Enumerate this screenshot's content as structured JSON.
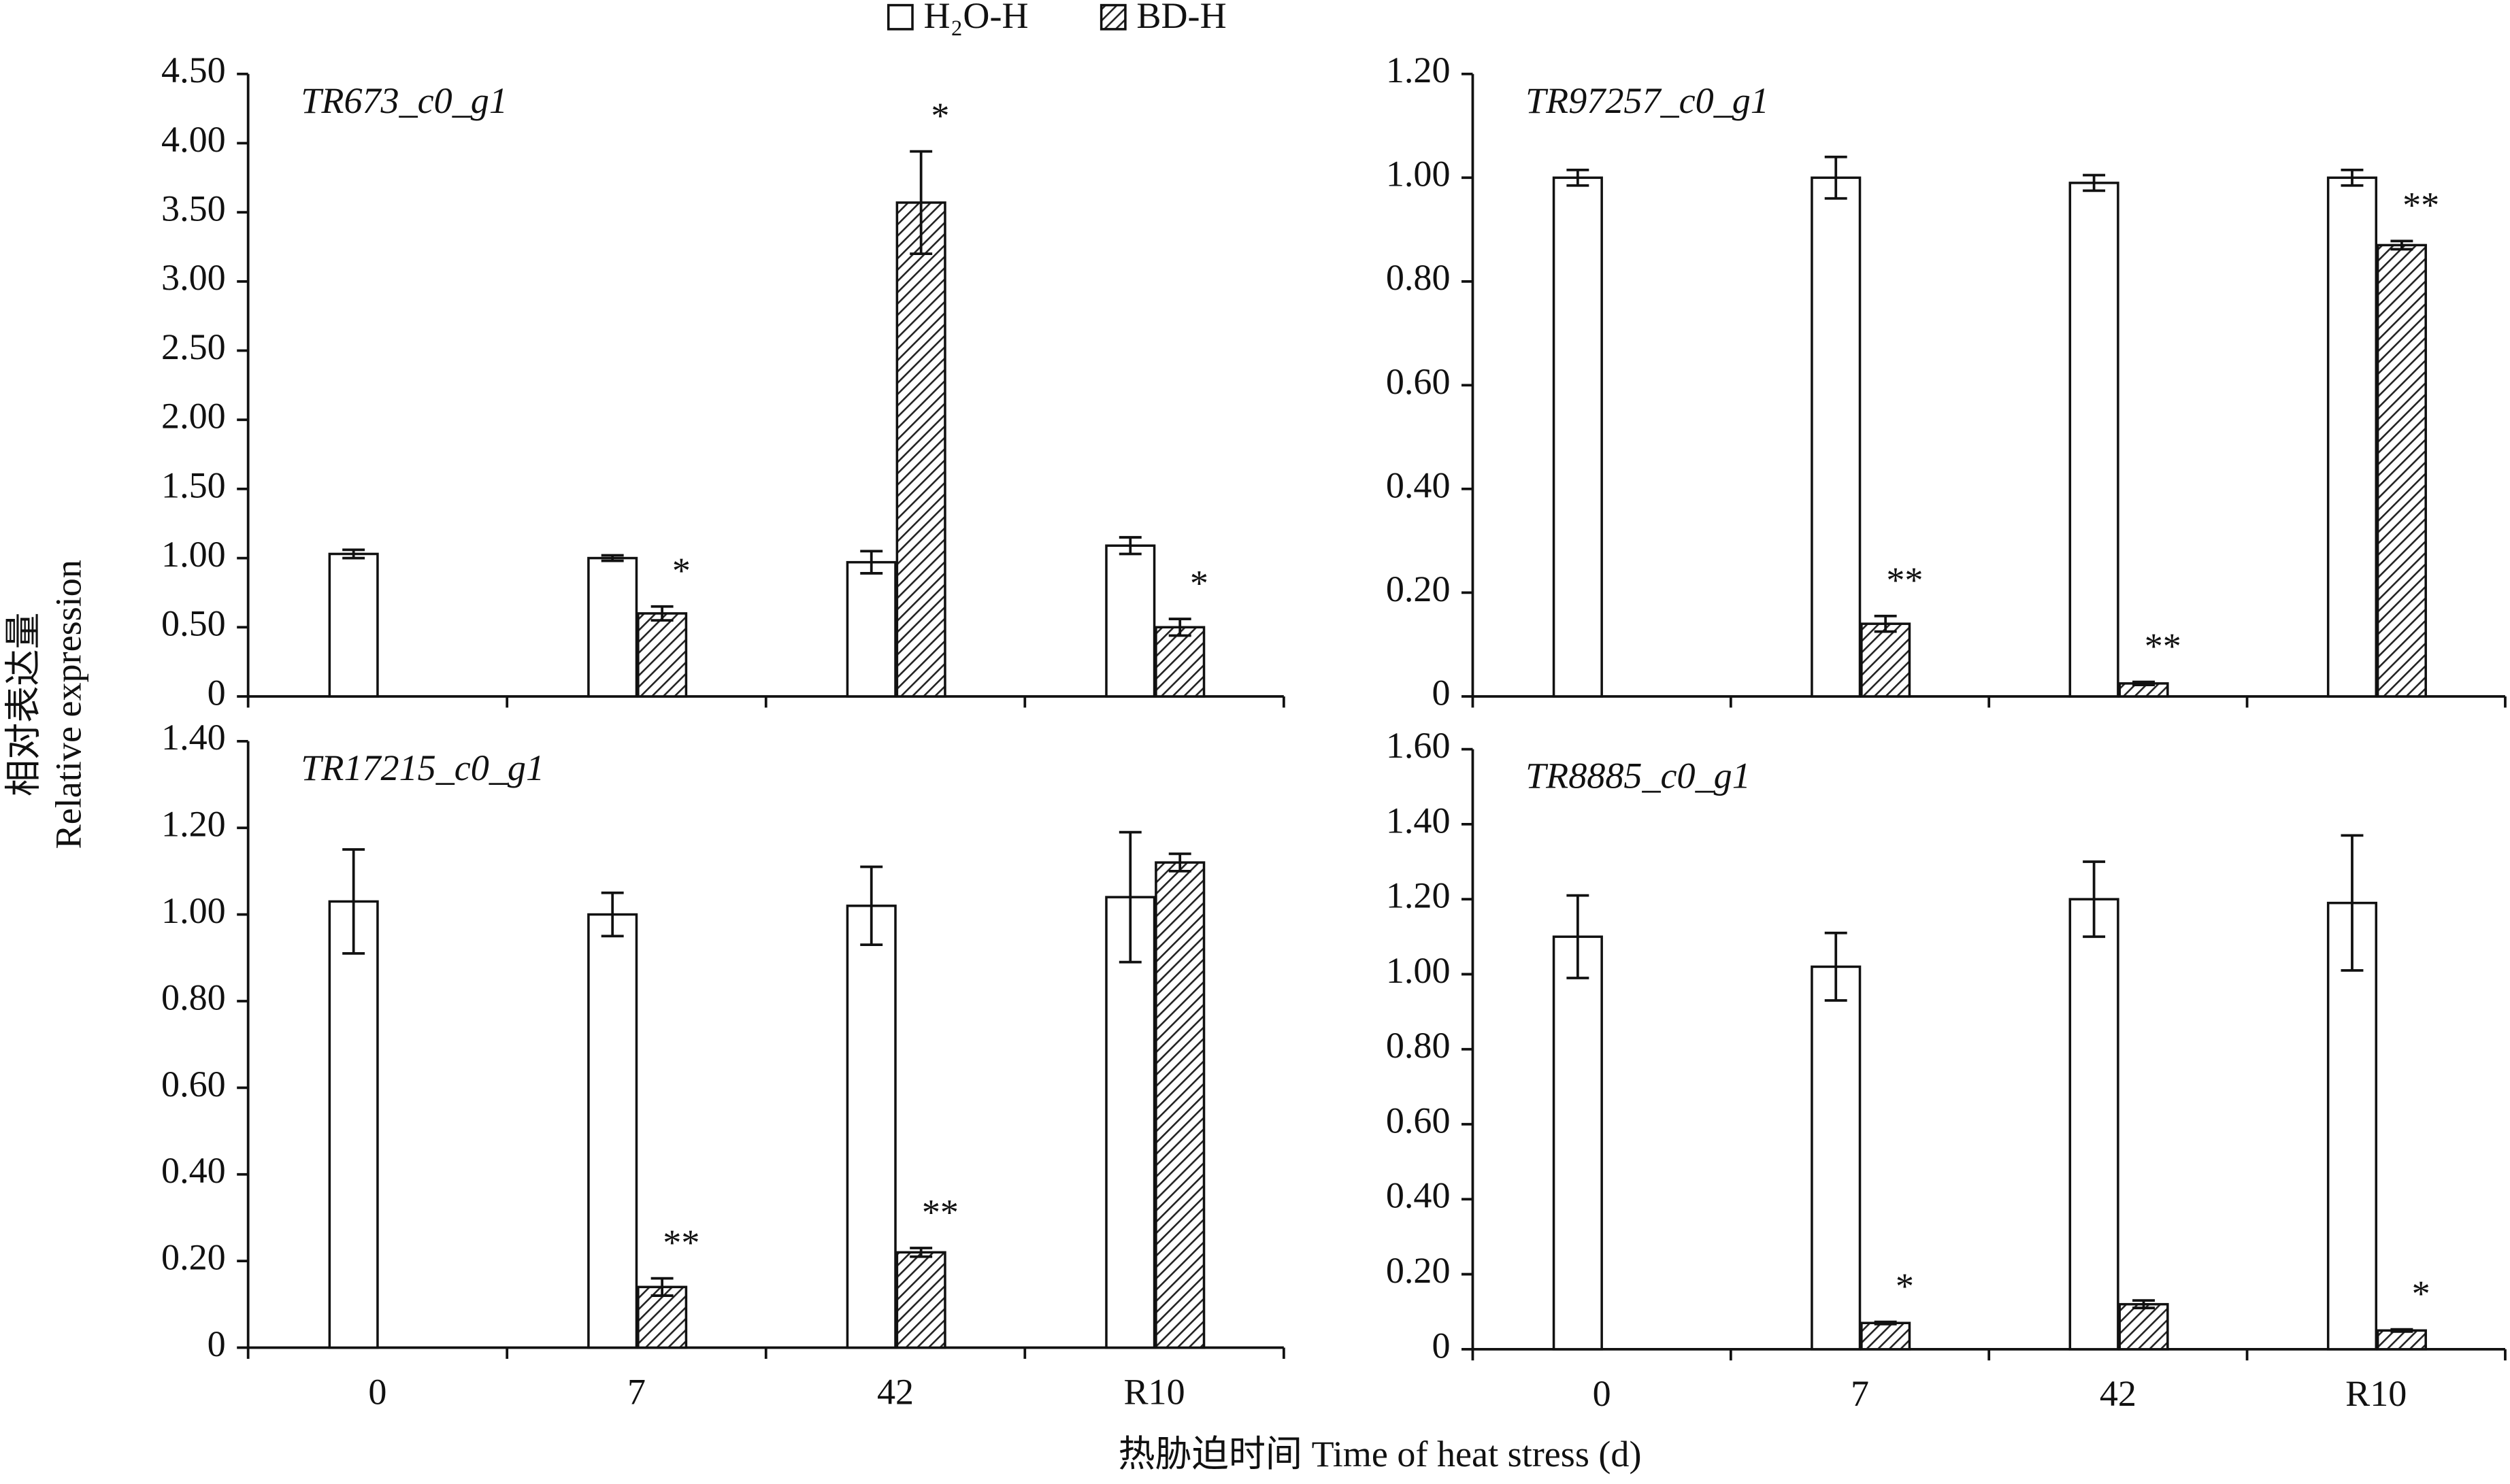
{
  "legend": [
    {
      "name": "H₂O-H",
      "fill": "open"
    },
    {
      "name": "BD-H",
      "fill": "hatched"
    }
  ],
  "ylabel": [
    "相对表达量",
    "Relative expression"
  ],
  "xlabel": "热胁迫时间 Time of heat stress (d)",
  "chart_data": [
    {
      "type": "bar",
      "title": "TR673_c0_g1",
      "series": [
        {
          "values": [
            1.03,
            1.0,
            0.97,
            1.09
          ],
          "errors": [
            0.03,
            0.02,
            0.08,
            0.06
          ],
          "annotations": [
            null,
            null,
            null,
            null
          ]
        },
        {
          "values": [
            null,
            0.6,
            3.57,
            0.5
          ],
          "errors": [
            null,
            0.05,
            0.37,
            0.06
          ],
          "annotations": [
            null,
            "*",
            "*",
            "*"
          ]
        }
      ],
      "ylim": [
        0,
        4.5
      ],
      "yticks": [
        0,
        {
          "value": 0.5,
          "label": "0.50"
        },
        {
          "value": 1,
          "label": "1.00"
        },
        {
          "value": 1.5,
          "label": "1.50"
        },
        {
          "value": 2,
          "label": "2.00"
        },
        {
          "value": 2.5,
          "label": "2.50"
        },
        {
          "value": 3,
          "label": "3.00"
        },
        {
          "value": 3.5,
          "label": "3.50"
        },
        {
          "value": 4,
          "label": "4.00"
        },
        {
          "value": 4.5,
          "label": "4.50"
        }
      ]
    },
    {
      "type": "bar",
      "title": "TR97257_c0_g1",
      "series": [
        {
          "values": [
            1.0,
            1.0,
            0.99,
            1.0
          ],
          "errors": [
            0.015,
            0.04,
            0.015,
            0.015
          ],
          "annotations": [
            null,
            null,
            null,
            null
          ]
        },
        {
          "values": [
            null,
            0.14,
            0.025,
            0.87
          ],
          "errors": [
            null,
            0.015,
            0.003,
            0.008
          ],
          "annotations": [
            null,
            "**",
            "**",
            "**"
          ]
        }
      ],
      "ylim": [
        0,
        1.2
      ],
      "yticks": [
        0,
        {
          "value": 0.2,
          "label": "0.20"
        },
        {
          "value": 0.4,
          "label": "0.40"
        },
        {
          "value": 0.6,
          "label": "0.60"
        },
        {
          "value": 0.8,
          "label": "0.80"
        },
        {
          "value": 1,
          "label": "1.00"
        },
        {
          "value": 1.2,
          "label": "1.20"
        }
      ]
    },
    {
      "type": "bar",
      "title": "TR17215_c0_g1",
      "categories": [
        "0",
        "7",
        "42",
        "R10"
      ],
      "series": [
        {
          "values": [
            1.03,
            1.0,
            1.02,
            1.04
          ],
          "errors": [
            0.12,
            0.05,
            0.09,
            0.15
          ],
          "annotations": [
            null,
            null,
            null,
            null
          ]
        },
        {
          "values": [
            null,
            0.14,
            0.22,
            1.12
          ],
          "errors": [
            null,
            0.02,
            0.01,
            0.02
          ],
          "annotations": [
            null,
            "**",
            "**",
            null
          ]
        }
      ],
      "ylim": [
        0,
        1.4
      ],
      "yticks": [
        0,
        {
          "value": 0.2,
          "label": "0.20"
        },
        {
          "value": 0.4,
          "label": "0.40"
        },
        {
          "value": 0.6,
          "label": "0.60"
        },
        {
          "value": 0.8,
          "label": "0.80"
        },
        {
          "value": 1,
          "label": "1.00"
        },
        {
          "value": 1.2,
          "label": "1.20"
        },
        {
          "value": 1.4,
          "label": "1.40"
        }
      ]
    },
    {
      "type": "bar",
      "title": "TR8885_c0_g1",
      "categories": [
        "0",
        "7",
        "42",
        "R10"
      ],
      "series": [
        {
          "values": [
            1.1,
            1.02,
            1.2,
            1.19
          ],
          "errors": [
            0.11,
            0.09,
            0.1,
            0.18
          ],
          "annotations": [
            null,
            null,
            null,
            null
          ]
        },
        {
          "values": [
            null,
            0.07,
            0.12,
            0.05
          ],
          "errors": [
            null,
            0.003,
            0.01,
            0.003
          ],
          "annotations": [
            null,
            "*",
            null,
            "*"
          ]
        }
      ],
      "ylim": [
        0,
        1.6
      ],
      "yticks": [
        0,
        {
          "value": 0.2,
          "label": "0.20"
        },
        {
          "value": 0.4,
          "label": "0.40"
        },
        {
          "value": 0.6,
          "label": "0.60"
        },
        {
          "value": 0.8,
          "label": "0.80"
        },
        {
          "value": 1,
          "label": "1.00"
        },
        {
          "value": 1.2,
          "label": "1.20"
        },
        {
          "value": 1.4,
          "label": "1.40"
        },
        {
          "value": 1.6,
          "label": "1.60"
        }
      ]
    }
  ]
}
